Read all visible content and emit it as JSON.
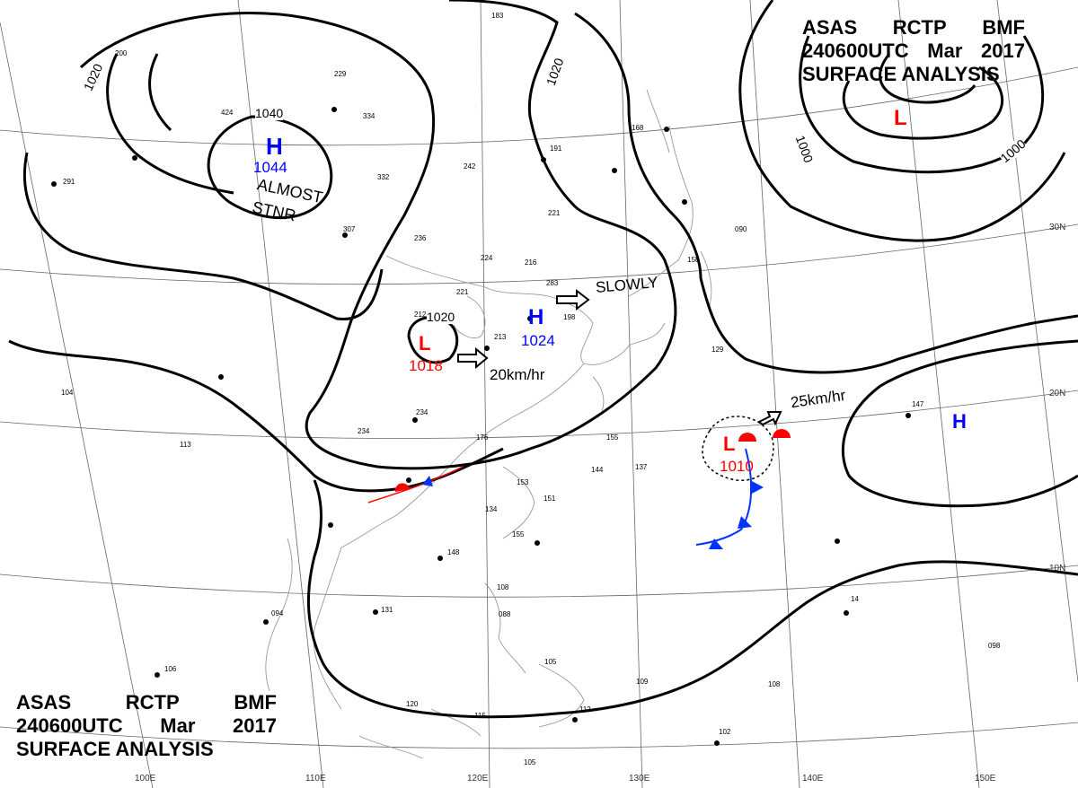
{
  "header": {
    "agency": "ASAS",
    "station": "RCTP",
    "code": "BMF",
    "datetime": "240600UTC",
    "month": "Mar",
    "year": "2017",
    "product": "SURFACE ANALYSIS"
  },
  "colors": {
    "isobar": "#000000",
    "high": "#0000ff",
    "low": "#ff0000",
    "grid": "#555555",
    "coast": "#888888",
    "cold_front": "#0033ff",
    "warm_front": "#ff0000"
  },
  "systems": [
    {
      "id": "high-mongolia",
      "kind": "H",
      "pressure": "1044",
      "note": "ALMOST STNR"
    },
    {
      "id": "low-inland",
      "kind": "L",
      "pressure": "1018"
    },
    {
      "id": "high-eastchina",
      "kind": "H",
      "pressure": "1024"
    },
    {
      "id": "low-pacific",
      "kind": "L",
      "pressure": "1010"
    },
    {
      "id": "low-north",
      "kind": "L"
    },
    {
      "id": "high-pacific",
      "kind": "H"
    }
  ],
  "movements": {
    "slowly": "SLOWLY",
    "inland_speed": "20km/hr",
    "pacific_speed": "25km/hr"
  },
  "isobar_labels": [
    "1040",
    "1020",
    "1020",
    "1020",
    "1000",
    "1000"
  ],
  "lat_labels": [
    "30N",
    "20N",
    "10N"
  ],
  "lon_labels": [
    "100E",
    "110E",
    "120E",
    "130E",
    "140E",
    "150E"
  ]
}
